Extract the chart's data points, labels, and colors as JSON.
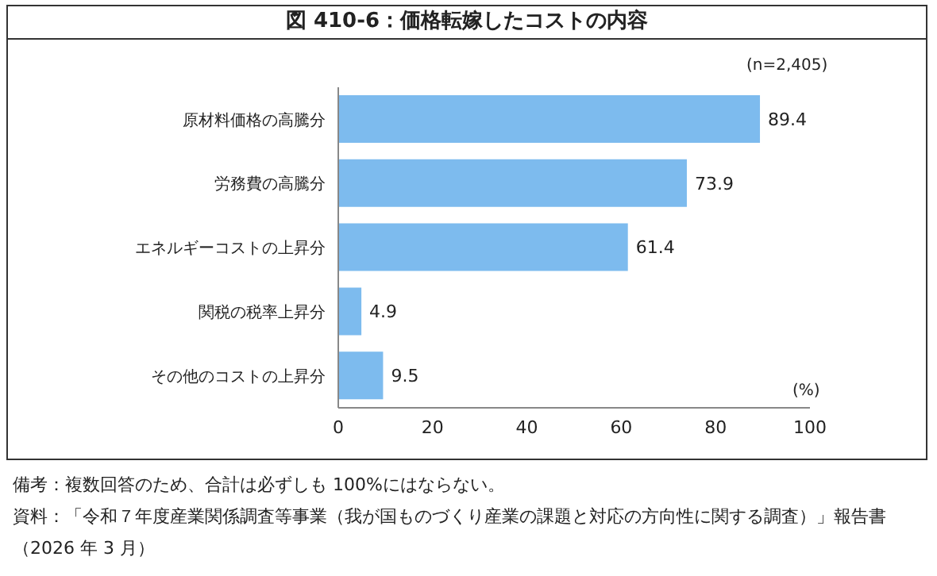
{
  "chart_data": {
    "type": "bar",
    "orientation": "horizontal",
    "title": "図 410-6：価格転嫁したコストの内容",
    "categories": [
      "原材料価格の高騰分",
      "労務費の高騰分",
      "エネルギーコストの上昇分",
      "関税の税率上昇分",
      "その他のコストの上昇分"
    ],
    "values": [
      89.4,
      73.9,
      61.4,
      4.9,
      9.5
    ],
    "color": "#7dbbee",
    "xlim": [
      0,
      100
    ],
    "xticks": [
      0,
      20,
      40,
      60,
      80,
      100
    ],
    "xlabel": "(%)",
    "data_labels": true,
    "annotations": [
      "(n=2,405)",
      "備考：複数回答のため、合計は必ずしも 100%にはならない。",
      "資料：「令和７年度産業関係調査等事業（我が国ものづくり産業の課題と対応の方向性に関する調査）」報告書（2026 年 3 月）"
    ]
  }
}
